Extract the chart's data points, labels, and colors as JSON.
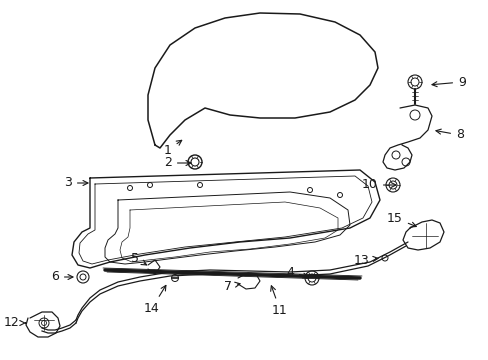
{
  "background_color": "#ffffff",
  "line_color": "#1a1a1a",
  "figsize": [
    4.89,
    3.6
  ],
  "dpi": 100
}
